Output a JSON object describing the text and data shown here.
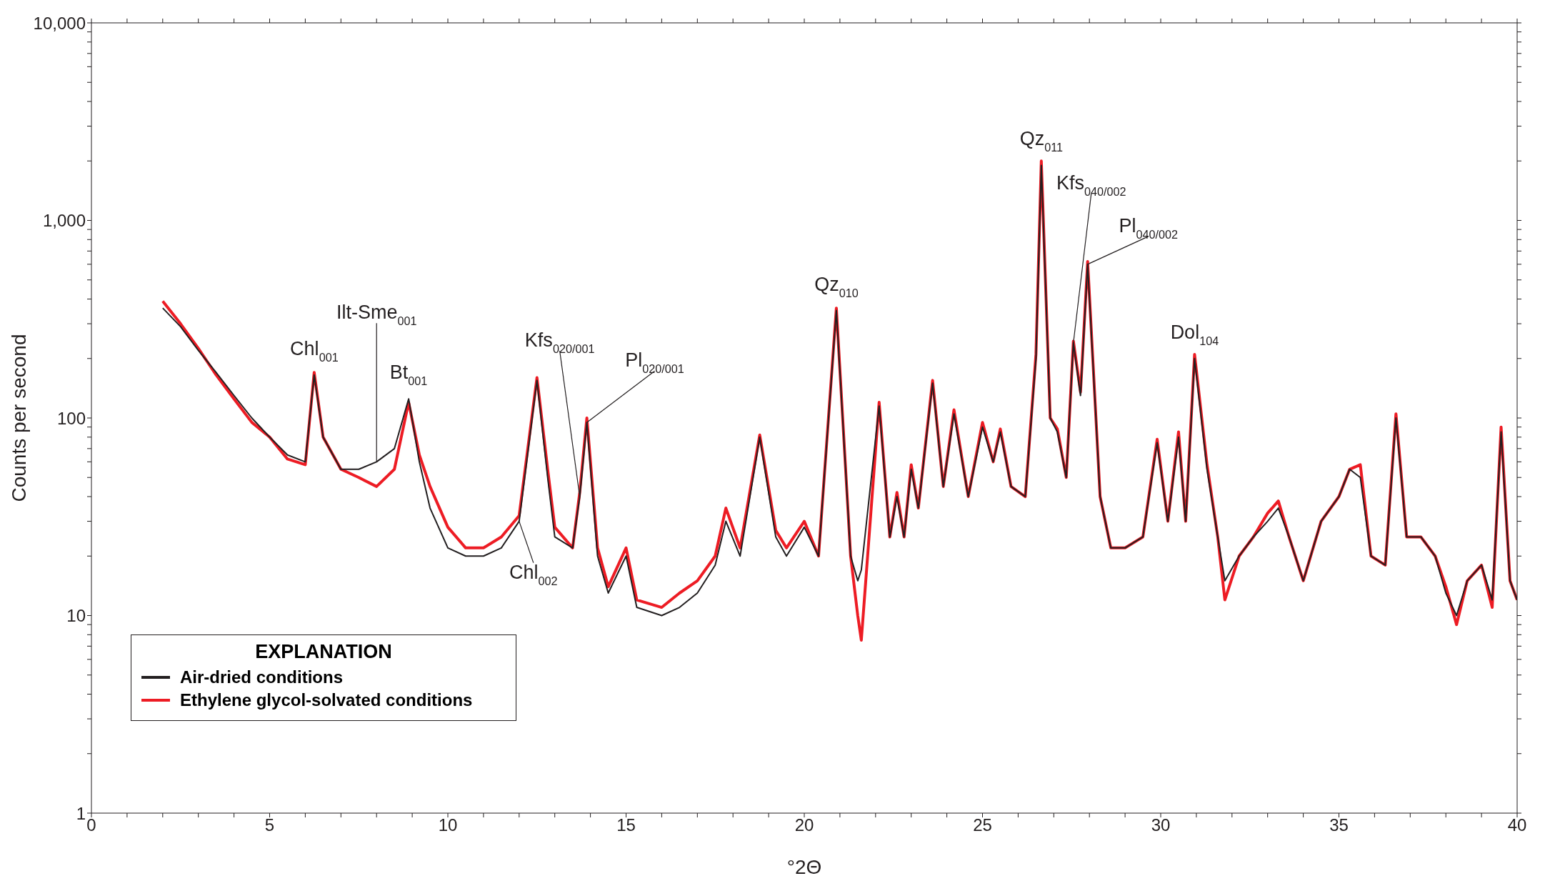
{
  "chart_data": {
    "type": "line",
    "xlabel": "°2Θ",
    "ylabel": "Counts per second",
    "legend_title": "EXPLANATION",
    "legend": "bottom left",
    "log": "y",
    "marker": "none",
    "line_style": "solid",
    "xlim": [
      0,
      40
    ],
    "ylim": [
      1,
      10000
    ],
    "xticks": [
      0,
      {
        "value": 1,
        "label": null
      },
      {
        "value": 2,
        "label": null
      },
      {
        "value": 3,
        "label": null
      },
      {
        "value": 4,
        "label": null
      },
      5,
      {
        "value": 6,
        "label": null
      },
      {
        "value": 7,
        "label": null
      },
      {
        "value": 8,
        "label": null
      },
      {
        "value": 9,
        "label": null
      },
      10,
      {
        "value": 11,
        "label": null
      },
      {
        "value": 12,
        "label": null
      },
      {
        "value": 13,
        "label": null
      },
      {
        "value": 14,
        "label": null
      },
      15,
      {
        "value": 16,
        "label": null
      },
      {
        "value": 17,
        "label": null
      },
      {
        "value": 18,
        "label": null
      },
      {
        "value": 19,
        "label": null
      },
      20,
      {
        "value": 21,
        "label": null
      },
      {
        "value": 22,
        "label": null
      },
      {
        "value": 23,
        "label": null
      },
      {
        "value": 24,
        "label": null
      },
      25,
      {
        "value": 26,
        "label": null
      },
      {
        "value": 27,
        "label": null
      },
      {
        "value": 28,
        "label": null
      },
      {
        "value": 29,
        "label": null
      },
      30,
      {
        "value": 31,
        "label": null
      },
      {
        "value": 32,
        "label": null
      },
      {
        "value": 33,
        "label": null
      },
      {
        "value": 34,
        "label": null
      },
      35,
      {
        "value": 36,
        "label": null
      },
      {
        "value": 37,
        "label": null
      },
      {
        "value": 38,
        "label": null
      },
      {
        "value": 39,
        "label": null
      },
      40
    ],
    "yticks": [
      1,
      {
        "value": 2,
        "label": null
      },
      {
        "value": 3,
        "label": null
      },
      {
        "value": 4,
        "label": null
      },
      {
        "value": 5,
        "label": null
      },
      {
        "value": 6,
        "label": null
      },
      {
        "value": 7,
        "label": null
      },
      {
        "value": 8,
        "label": null
      },
      {
        "value": 9,
        "label": null
      },
      10,
      {
        "value": 20,
        "label": null
      },
      {
        "value": 30,
        "label": null
      },
      {
        "value": 40,
        "label": null
      },
      {
        "value": 50,
        "label": null
      },
      {
        "value": 60,
        "label": null
      },
      {
        "value": 70,
        "label": null
      },
      {
        "value": 80,
        "label": null
      },
      {
        "value": 90,
        "label": null
      },
      100,
      {
        "value": 200,
        "label": null
      },
      {
        "value": 300,
        "label": null
      },
      {
        "value": 400,
        "label": null
      },
      {
        "value": 500,
        "label": null
      },
      {
        "value": 600,
        "label": null
      },
      {
        "value": 700,
        "label": null
      },
      {
        "value": 800,
        "label": null
      },
      {
        "value": 900,
        "label": null
      },
      {
        "value": 1000,
        "label": "1,000"
      },
      {
        "value": 2000,
        "label": null
      },
      {
        "value": 3000,
        "label": null
      },
      {
        "value": 4000,
        "label": null
      },
      {
        "value": 5000,
        "label": null
      },
      {
        "value": 6000,
        "label": null
      },
      {
        "value": 7000,
        "label": null
      },
      {
        "value": 8000,
        "label": null
      },
      {
        "value": 9000,
        "label": null
      },
      {
        "value": 10000,
        "label": "10,000"
      }
    ],
    "x": [
      2.0,
      2.5,
      3.0,
      3.5,
      4.0,
      4.5,
      5.0,
      5.5,
      6.0,
      6.25,
      6.5,
      7.0,
      7.5,
      8.0,
      8.5,
      8.9,
      9.2,
      9.5,
      10.0,
      10.5,
      11.0,
      11.5,
      12.0,
      12.5,
      12.8,
      13.0,
      13.5,
      13.7,
      13.9,
      14.2,
      14.5,
      15.0,
      15.3,
      16.0,
      16.5,
      17.0,
      17.5,
      17.8,
      18.2,
      18.75,
      19.2,
      19.5,
      20.0,
      20.4,
      20.9,
      21.3,
      21.5,
      21.6,
      22.1,
      22.4,
      22.6,
      22.8,
      23.0,
      23.2,
      23.6,
      23.9,
      24.2,
      24.6,
      25.0,
      25.3,
      25.5,
      25.8,
      26.2,
      26.5,
      26.65,
      26.9,
      27.1,
      27.35,
      27.55,
      27.75,
      27.95,
      28.3,
      28.6,
      29.0,
      29.5,
      29.9,
      30.2,
      30.5,
      30.7,
      30.95,
      31.3,
      31.6,
      31.8,
      32.2,
      32.6,
      33.0,
      33.3,
      33.6,
      34.0,
      34.5,
      35.0,
      35.3,
      35.6,
      35.9,
      36.3,
      36.6,
      36.9,
      37.3,
      37.7,
      38.0,
      38.3,
      38.6,
      39.0,
      39.3,
      39.55,
      39.8,
      40.0
    ],
    "series": [
      {
        "name": "Air-dried conditions",
        "color": "#231f20",
        "values": [
          360,
          290,
          220,
          170,
          130,
          100,
          80,
          65,
          60,
          165,
          80,
          55,
          55,
          60,
          70,
          125,
          60,
          35,
          22,
          20,
          20,
          22,
          30,
          155,
          50,
          25,
          22,
          40,
          95,
          20,
          13,
          20,
          11,
          10,
          11,
          13,
          18,
          30,
          20,
          80,
          25,
          20,
          28,
          20,
          350,
          20,
          15,
          17,
          115,
          25,
          40,
          25,
          55,
          35,
          150,
          45,
          105,
          40,
          90,
          60,
          85,
          45,
          40,
          200,
          1900,
          100,
          85,
          50,
          240,
          130,
          600,
          40,
          22,
          22,
          25,
          75,
          30,
          80,
          30,
          200,
          55,
          25,
          15,
          20,
          25,
          30,
          35,
          25,
          15,
          30,
          40,
          55,
          50,
          20,
          18,
          100,
          25,
          25,
          20,
          13,
          10,
          15,
          18,
          12,
          85,
          15,
          12
        ]
      },
      {
        "name": "Ethylene glycol-solvated conditions",
        "color": "#ed1c24",
        "values": [
          390,
          300,
          225,
          165,
          125,
          95,
          80,
          62,
          58,
          170,
          80,
          55,
          50,
          45,
          55,
          120,
          65,
          45,
          28,
          22,
          22,
          25,
          32,
          160,
          55,
          28,
          22,
          42,
          100,
          22,
          14,
          22,
          12,
          11,
          13,
          15,
          20,
          35,
          22,
          82,
          27,
          22,
          30,
          20,
          360,
          20,
          10,
          7.5,
          120,
          25,
          42,
          25,
          58,
          35,
          155,
          45,
          110,
          40,
          95,
          60,
          88,
          45,
          40,
          210,
          2000,
          100,
          88,
          50,
          245,
          135,
          620,
          40,
          22,
          22,
          25,
          78,
          30,
          85,
          30,
          210,
          58,
          25,
          12,
          20,
          25,
          33,
          38,
          25,
          15,
          30,
          40,
          55,
          58,
          20,
          18,
          105,
          25,
          25,
          20,
          14,
          9,
          15,
          18,
          11,
          90,
          15,
          12
        ]
      }
    ],
    "annotations": [
      {
        "text": "Chl$_{001}$",
        "x": 6.25,
        "y": 165
      },
      {
        "text": "Ilt-Sme$_{001}$",
        "x": 8.0,
        "y": 60
      },
      {
        "text": "Bt$_{001}$",
        "x": 8.9,
        "y": 125
      },
      {
        "text": "Chl$_{002}$",
        "x": 12.0,
        "y": 30
      },
      {
        "text": "Kfs$_{020/001}$",
        "x": 13.7,
        "y": 40
      },
      {
        "text": "Pl$_{020/001}$",
        "x": 13.9,
        "y": 95
      },
      {
        "text": "Qz$_{010}$",
        "x": 20.9,
        "y": 350
      },
      {
        "text": "Qz$_{011}$",
        "x": 26.65,
        "y": 1900
      },
      {
        "text": "Kfs$_{040/002}$",
        "x": 27.55,
        "y": 240
      },
      {
        "text": "Pl$_{040/002}$",
        "x": 27.95,
        "y": 600
      },
      {
        "text": "Dol$_{104}$",
        "x": 30.95,
        "y": 200
      }
    ]
  }
}
